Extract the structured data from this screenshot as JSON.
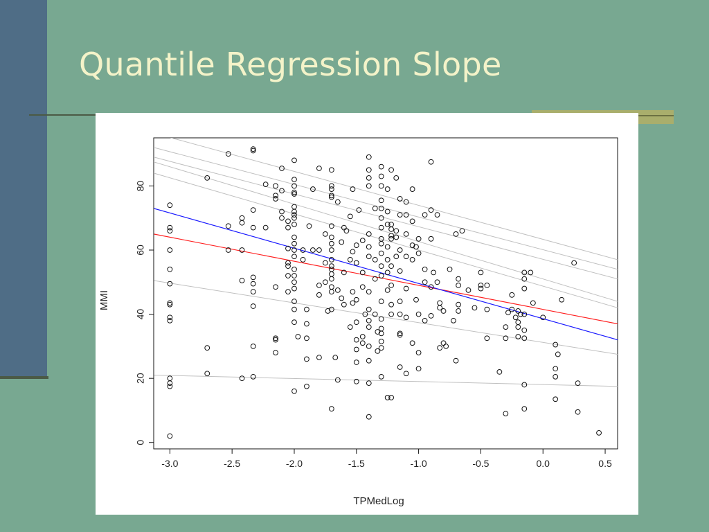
{
  "slide": {
    "title": "Quantile Regression Slope"
  },
  "colors": {
    "background": "#78a891",
    "sidebar": "#4f6d86",
    "title_text": "#f4f3c9",
    "accent": "#a9ae6c",
    "ols_line": "#1a1aff",
    "median_line": "#ff2020",
    "quantile_lines": "#c0c0c0"
  },
  "chart_data": {
    "type": "scatter",
    "xlabel": "TPMedLog",
    "ylabel": "MMI",
    "xlim": [
      -3.13,
      0.6
    ],
    "ylim": [
      -2,
      95
    ],
    "x_ticks": [
      -3.0,
      -2.5,
      -2.0,
      -1.5,
      -1.0,
      -0.5,
      0.0,
      0.5
    ],
    "x_tick_labels": [
      "-3.0",
      "-2.5",
      "-2.0",
      "-1.5",
      "-1.0",
      "-0.5",
      "0.0",
      "0.5"
    ],
    "y_ticks": [
      0,
      20,
      40,
      60,
      80
    ],
    "y_tick_labels": [
      "0",
      "20",
      "40",
      "60",
      "80"
    ],
    "grid": false,
    "points": [
      [
        -3.0,
        74
      ],
      [
        -3.0,
        67
      ],
      [
        -3.0,
        66
      ],
      [
        -3.0,
        60
      ],
      [
        -3.0,
        54
      ],
      [
        -3.0,
        49.5
      ],
      [
        -3.0,
        43
      ],
      [
        -3.0,
        43.5
      ],
      [
        -3.0,
        38
      ],
      [
        -3.0,
        39
      ],
      [
        -3.0,
        20
      ],
      [
        -3.0,
        18.5
      ],
      [
        -3.0,
        17.5
      ],
      [
        -3.0,
        2
      ],
      [
        -2.7,
        82.5
      ],
      [
        -2.7,
        29.5
      ],
      [
        -2.7,
        21.5
      ],
      [
        -2.53,
        90
      ],
      [
        -2.53,
        67.5
      ],
      [
        -2.53,
        60
      ],
      [
        -2.42,
        70
      ],
      [
        -2.42,
        68.5
      ],
      [
        -2.42,
        60
      ],
      [
        -2.42,
        50.5
      ],
      [
        -2.42,
        20
      ],
      [
        -2.33,
        91.5
      ],
      [
        -2.33,
        91
      ],
      [
        -2.33,
        72.5
      ],
      [
        -2.33,
        67
      ],
      [
        -2.33,
        51.5
      ],
      [
        -2.33,
        49.5
      ],
      [
        -2.33,
        47
      ],
      [
        -2.33,
        42.5
      ],
      [
        -2.33,
        30
      ],
      [
        -2.33,
        20.5
      ],
      [
        -2.23,
        80.5
      ],
      [
        -2.23,
        67
      ],
      [
        -2.15,
        80
      ],
      [
        -2.15,
        77
      ],
      [
        -2.15,
        76
      ],
      [
        -2.15,
        48.5
      ],
      [
        -2.15,
        32.5
      ],
      [
        -2.15,
        32
      ],
      [
        -2.15,
        28
      ],
      [
        -2.1,
        85.5
      ],
      [
        -2.1,
        78.5
      ],
      [
        -2.1,
        72
      ],
      [
        -2.1,
        70
      ],
      [
        -2.05,
        69
      ],
      [
        -2.05,
        67
      ],
      [
        -2.05,
        60.5
      ],
      [
        -2.05,
        56
      ],
      [
        -2.05,
        55
      ],
      [
        -2.05,
        52
      ],
      [
        -2.05,
        47
      ],
      [
        -2.0,
        88
      ],
      [
        -2.0,
        82
      ],
      [
        -2.0,
        80
      ],
      [
        -2.0,
        78
      ],
      [
        -2.0,
        77.5
      ],
      [
        -2.0,
        73.5
      ],
      [
        -2.0,
        72
      ],
      [
        -2.0,
        71
      ],
      [
        -2.0,
        70
      ],
      [
        -2.0,
        68
      ],
      [
        -2.0,
        64
      ],
      [
        -2.0,
        62
      ],
      [
        -2.0,
        60
      ],
      [
        -2.0,
        58
      ],
      [
        -2.0,
        54
      ],
      [
        -2.0,
        52
      ],
      [
        -2.0,
        50
      ],
      [
        -2.0,
        48
      ],
      [
        -2.0,
        44
      ],
      [
        -2.0,
        41.5
      ],
      [
        -2.0,
        37.5
      ],
      [
        -2.0,
        16
      ],
      [
        -1.97,
        33
      ],
      [
        -1.93,
        60
      ],
      [
        -1.93,
        57
      ],
      [
        -1.9,
        41.5
      ],
      [
        -1.9,
        37
      ],
      [
        -1.9,
        32.5
      ],
      [
        -1.9,
        26
      ],
      [
        -1.9,
        17.5
      ],
      [
        -1.88,
        67.5
      ],
      [
        -1.85,
        60
      ],
      [
        -1.85,
        79
      ],
      [
        -1.8,
        85.5
      ],
      [
        -1.8,
        60
      ],
      [
        -1.8,
        49
      ],
      [
        -1.8,
        46
      ],
      [
        -1.8,
        26.5
      ],
      [
        -1.75,
        65
      ],
      [
        -1.75,
        56
      ],
      [
        -1.75,
        50
      ],
      [
        -1.73,
        41
      ],
      [
        -1.7,
        85
      ],
      [
        -1.7,
        80
      ],
      [
        -1.7,
        79
      ],
      [
        -1.7,
        77
      ],
      [
        -1.7,
        76.5
      ],
      [
        -1.7,
        67.5
      ],
      [
        -1.7,
        64
      ],
      [
        -1.7,
        62
      ],
      [
        -1.7,
        60
      ],
      [
        -1.7,
        57
      ],
      [
        -1.7,
        55
      ],
      [
        -1.7,
        54
      ],
      [
        -1.7,
        52.5
      ],
      [
        -1.7,
        51
      ],
      [
        -1.7,
        48.5
      ],
      [
        -1.7,
        47
      ],
      [
        -1.7,
        41.5
      ],
      [
        -1.7,
        10.5
      ],
      [
        -1.67,
        26.5
      ],
      [
        -1.65,
        75
      ],
      [
        -1.65,
        47.5
      ],
      [
        -1.65,
        19.5
      ],
      [
        -1.62,
        62.5
      ],
      [
        -1.62,
        45
      ],
      [
        -1.6,
        67
      ],
      [
        -1.6,
        53
      ],
      [
        -1.6,
        43
      ],
      [
        -1.58,
        66
      ],
      [
        -1.55,
        70.5
      ],
      [
        -1.55,
        57
      ],
      [
        -1.55,
        36
      ],
      [
        -1.53,
        79
      ],
      [
        -1.53,
        59.5
      ],
      [
        -1.53,
        47
      ],
      [
        -1.53,
        43.5
      ],
      [
        -1.5,
        61.5
      ],
      [
        -1.5,
        56
      ],
      [
        -1.5,
        44.5
      ],
      [
        -1.5,
        37.5
      ],
      [
        -1.5,
        32
      ],
      [
        -1.5,
        29
      ],
      [
        -1.5,
        25
      ],
      [
        -1.5,
        19
      ],
      [
        -1.48,
        72.5
      ],
      [
        -1.45,
        63
      ],
      [
        -1.45,
        53
      ],
      [
        -1.45,
        48.5
      ],
      [
        -1.45,
        33
      ],
      [
        -1.45,
        31
      ],
      [
        -1.43,
        40
      ],
      [
        -1.4,
        89
      ],
      [
        -1.4,
        85
      ],
      [
        -1.4,
        82.5
      ],
      [
        -1.4,
        80
      ],
      [
        -1.4,
        65
      ],
      [
        -1.4,
        61
      ],
      [
        -1.4,
        58
      ],
      [
        -1.4,
        47
      ],
      [
        -1.4,
        41.5
      ],
      [
        -1.4,
        38
      ],
      [
        -1.4,
        36
      ],
      [
        -1.4,
        30
      ],
      [
        -1.4,
        25.5
      ],
      [
        -1.4,
        18.5
      ],
      [
        -1.4,
        8
      ],
      [
        -1.35,
        73
      ],
      [
        -1.35,
        57
      ],
      [
        -1.35,
        51
      ],
      [
        -1.35,
        40
      ],
      [
        -1.33,
        34.5
      ],
      [
        -1.33,
        28.5
      ],
      [
        -1.3,
        86
      ],
      [
        -1.3,
        83
      ],
      [
        -1.3,
        80
      ],
      [
        -1.3,
        75.5
      ],
      [
        -1.3,
        73
      ],
      [
        -1.3,
        70
      ],
      [
        -1.3,
        67
      ],
      [
        -1.3,
        63.5
      ],
      [
        -1.3,
        62
      ],
      [
        -1.3,
        59
      ],
      [
        -1.3,
        55
      ],
      [
        -1.3,
        52
      ],
      [
        -1.3,
        44
      ],
      [
        -1.3,
        38.5
      ],
      [
        -1.3,
        35.5
      ],
      [
        -1.3,
        34
      ],
      [
        -1.3,
        31.5
      ],
      [
        -1.3,
        29.5
      ],
      [
        -1.3,
        20.5
      ],
      [
        -1.25,
        79
      ],
      [
        -1.25,
        72
      ],
      [
        -1.25,
        68
      ],
      [
        -1.25,
        61
      ],
      [
        -1.25,
        57
      ],
      [
        -1.25,
        53
      ],
      [
        -1.25,
        47.5
      ],
      [
        -1.25,
        14
      ],
      [
        -1.22,
        85
      ],
      [
        -1.22,
        68
      ],
      [
        -1.22,
        66.5
      ],
      [
        -1.22,
        64.5
      ],
      [
        -1.22,
        63.5
      ],
      [
        -1.22,
        55
      ],
      [
        -1.22,
        49
      ],
      [
        -1.22,
        43
      ],
      [
        -1.22,
        40
      ],
      [
        -1.22,
        14
      ],
      [
        -1.18,
        82.5
      ],
      [
        -1.18,
        66
      ],
      [
        -1.18,
        64
      ],
      [
        -1.18,
        58
      ],
      [
        -1.15,
        76
      ],
      [
        -1.15,
        71
      ],
      [
        -1.15,
        60
      ],
      [
        -1.15,
        53.5
      ],
      [
        -1.15,
        44
      ],
      [
        -1.15,
        40
      ],
      [
        -1.15,
        34
      ],
      [
        -1.15,
        33.5
      ],
      [
        -1.15,
        23.5
      ],
      [
        -1.1,
        75
      ],
      [
        -1.1,
        71
      ],
      [
        -1.1,
        65
      ],
      [
        -1.1,
        58
      ],
      [
        -1.1,
        48
      ],
      [
        -1.1,
        39
      ],
      [
        -1.1,
        21.5
      ],
      [
        -1.05,
        79
      ],
      [
        -1.05,
        69
      ],
      [
        -1.05,
        61.5
      ],
      [
        -1.05,
        57
      ],
      [
        -1.05,
        31
      ],
      [
        -1.02,
        61
      ],
      [
        -1.02,
        44.5
      ],
      [
        -1.0,
        63.5
      ],
      [
        -1.0,
        59
      ],
      [
        -1.0,
        40
      ],
      [
        -1.0,
        28
      ],
      [
        -1.0,
        23
      ],
      [
        -0.95,
        71
      ],
      [
        -0.95,
        54
      ],
      [
        -0.95,
        50
      ],
      [
        -0.95,
        38
      ],
      [
        -0.9,
        87.5
      ],
      [
        -0.9,
        72.5
      ],
      [
        -0.9,
        63.5
      ],
      [
        -0.9,
        48.5
      ],
      [
        -0.9,
        39.5
      ],
      [
        -0.88,
        53
      ],
      [
        -0.85,
        71
      ],
      [
        -0.85,
        50
      ],
      [
        -0.83,
        43.5
      ],
      [
        -0.83,
        42
      ],
      [
        -0.83,
        29.5
      ],
      [
        -0.8,
        41
      ],
      [
        -0.8,
        31
      ],
      [
        -0.78,
        30
      ],
      [
        -0.75,
        54
      ],
      [
        -0.72,
        38
      ],
      [
        -0.7,
        65
      ],
      [
        -0.7,
        25.5
      ],
      [
        -0.68,
        51
      ],
      [
        -0.68,
        49
      ],
      [
        -0.68,
        43
      ],
      [
        -0.68,
        41
      ],
      [
        -0.65,
        66
      ],
      [
        -0.6,
        47.5
      ],
      [
        -0.55,
        42
      ],
      [
        -0.5,
        53
      ],
      [
        -0.5,
        49
      ],
      [
        -0.5,
        48
      ],
      [
        -0.45,
        49
      ],
      [
        -0.45,
        41.5
      ],
      [
        -0.45,
        32.5
      ],
      [
        -0.35,
        22
      ],
      [
        -0.3,
        36
      ],
      [
        -0.3,
        32.5
      ],
      [
        -0.3,
        9
      ],
      [
        -0.28,
        40.5
      ],
      [
        -0.25,
        46
      ],
      [
        -0.25,
        41.5
      ],
      [
        -0.22,
        39
      ],
      [
        -0.2,
        41
      ],
      [
        -0.2,
        37.5
      ],
      [
        -0.2,
        36
      ],
      [
        -0.2,
        33
      ],
      [
        -0.18,
        40
      ],
      [
        -0.15,
        53
      ],
      [
        -0.15,
        51
      ],
      [
        -0.15,
        48
      ],
      [
        -0.15,
        40
      ],
      [
        -0.15,
        35
      ],
      [
        -0.15,
        32.5
      ],
      [
        -0.15,
        18
      ],
      [
        -0.15,
        10.5
      ],
      [
        -0.1,
        53
      ],
      [
        -0.08,
        43.5
      ],
      [
        0.0,
        39
      ],
      [
        0.1,
        30.5
      ],
      [
        0.1,
        23
      ],
      [
        0.1,
        20.5
      ],
      [
        0.1,
        13.5
      ],
      [
        0.12,
        27.5
      ],
      [
        0.15,
        44.5
      ],
      [
        0.25,
        56
      ],
      [
        0.28,
        18.5
      ],
      [
        0.28,
        9.5
      ],
      [
        0.45,
        3
      ]
    ],
    "lines": [
      {
        "kind": "quantile",
        "color": "#c0c0c0",
        "x": [
          -3.13,
          0.6
        ],
        "y": [
          21,
          17.5
        ]
      },
      {
        "kind": "quantile",
        "color": "#c0c0c0",
        "x": [
          -3.13,
          0.6
        ],
        "y": [
          50.5,
          27.5
        ]
      },
      {
        "kind": "median",
        "color": "#ff2020",
        "x": [
          -3.13,
          0.6
        ],
        "y": [
          65,
          37
        ]
      },
      {
        "kind": "ols",
        "color": "#1a1aff",
        "x": [
          -3.13,
          0.6
        ],
        "y": [
          73,
          32
        ]
      },
      {
        "kind": "quantile",
        "color": "#c0c0c0",
        "x": [
          -3.13,
          0.6
        ],
        "y": [
          84,
          42
        ]
      },
      {
        "kind": "quantile",
        "color": "#c0c0c0",
        "x": [
          -3.13,
          0.6
        ],
        "y": [
          87.5,
          44
        ]
      },
      {
        "kind": "quantile",
        "color": "#c0c0c0",
        "x": [
          -3.13,
          0.6
        ],
        "y": [
          89,
          51
        ]
      },
      {
        "kind": "quantile",
        "color": "#c0c0c0",
        "x": [
          -3.13,
          0.6
        ],
        "y": [
          92,
          54
        ]
      },
      {
        "kind": "quantile",
        "color": "#c0c0c0",
        "x": [
          -3.13,
          0.6
        ],
        "y": [
          96.5,
          57
        ]
      }
    ]
  }
}
